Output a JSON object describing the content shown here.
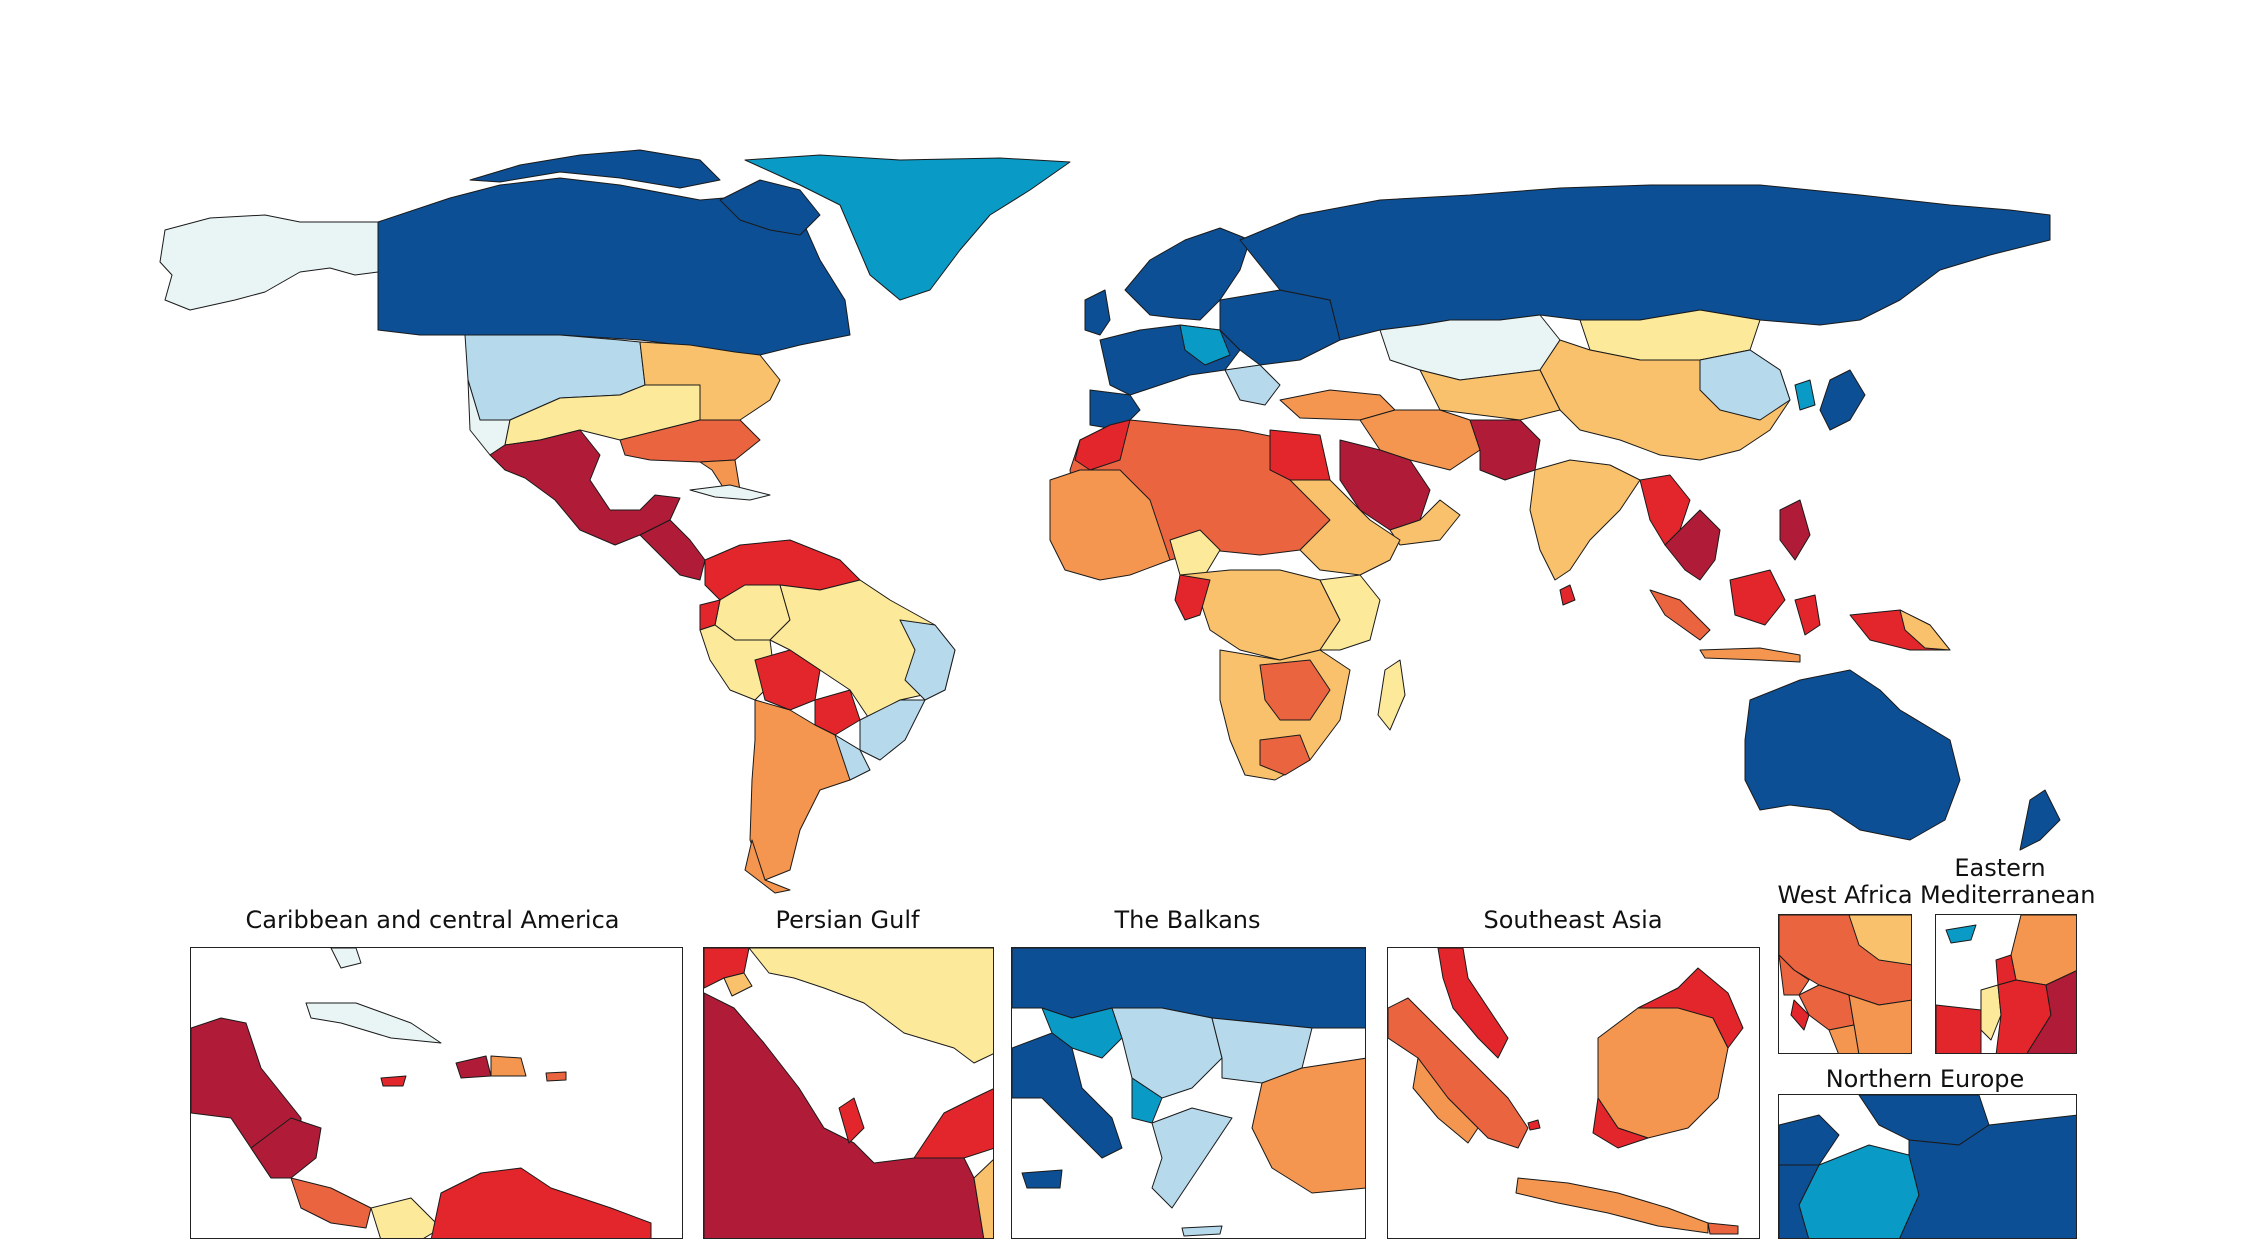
{
  "insets": {
    "caribbean": "Caribbean and central America",
    "persian_gulf": "Persian Gulf",
    "balkans": "The Balkans",
    "southeast_asia": "Southeast Asia",
    "west_africa": "West Africa",
    "eastern_med": "Eastern Mediterranean",
    "northern_europe": "Northern Europe"
  },
  "palette": {
    "dark_blue": "#0d4f94",
    "mid_blue": "#0a9ac6",
    "light_blue": "#b6d9ec",
    "pale_blue": "#e9f4f4",
    "pale_yellow": "#fde99a",
    "light_orange": "#f9c16b",
    "orange": "#f4964f",
    "red_orange": "#ea6440",
    "red": "#e2262b",
    "dark_red": "#b01c38"
  }
}
